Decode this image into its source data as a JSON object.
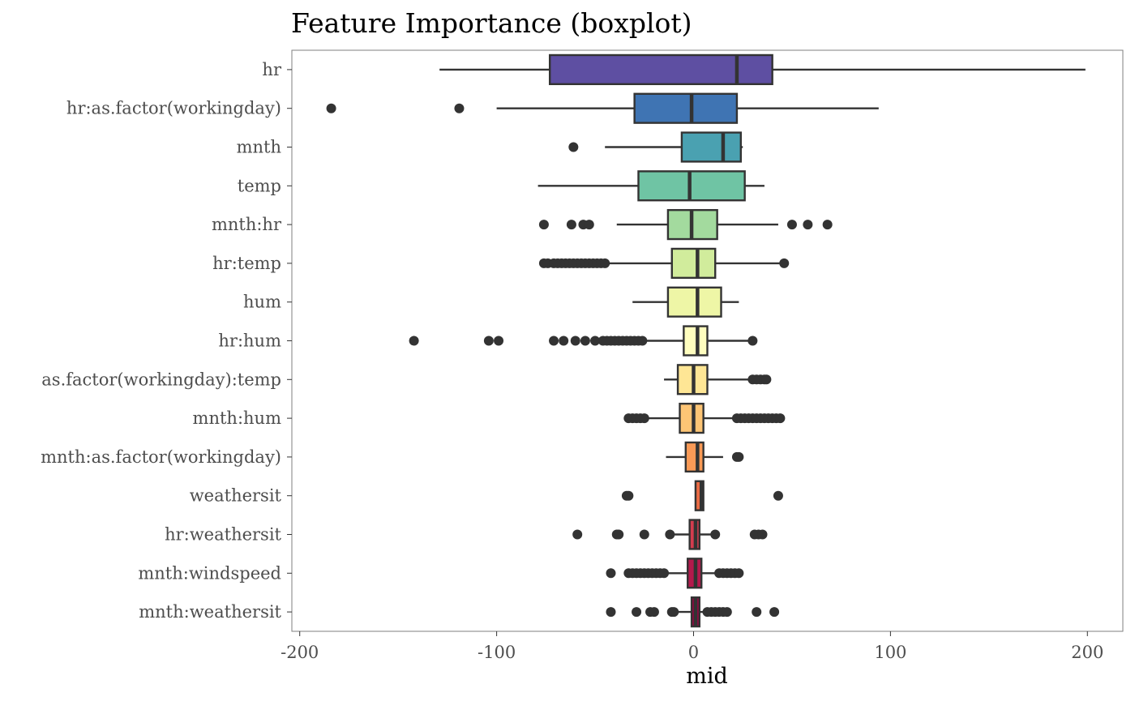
{
  "chart_data": {
    "type": "boxplot",
    "title": "Feature Importance (boxplot)",
    "xlabel": "mid",
    "ylabel": "",
    "xlim": [
      -204,
      218
    ],
    "xticks": [
      -200,
      -100,
      0,
      100,
      200
    ],
    "xtick_labels": [
      "-200",
      "-100",
      "0",
      "100",
      "200"
    ],
    "grid": false,
    "legend": "none",
    "categories": [
      "hr",
      "hr:as.factor(workingday)",
      "mnth",
      "temp",
      "mnth:hr",
      "hr:temp",
      "hum",
      "hr:hum",
      "as.factor(workingday):temp",
      "mnth:hum",
      "mnth:as.factor(workingday)",
      "weathersit",
      "hr:weathersit",
      "mnth:windspeed",
      "mnth:weathersit"
    ],
    "boxes": [
      {
        "whisker_low": -129,
        "q1": -73,
        "median": 22,
        "q3": 40,
        "whisker_high": 199,
        "outliers": [],
        "color": "#5E4FA2"
      },
      {
        "whisker_low": -100,
        "q1": -30,
        "median": -1,
        "q3": 22,
        "whisker_high": 94,
        "outliers": [
          -184,
          -119
        ],
        "color": "#3F74B3"
      },
      {
        "whisker_low": -45,
        "q1": -6,
        "median": 15,
        "q3": 24,
        "whisker_high": 25,
        "outliers": [
          -61
        ],
        "color": "#4AA1B1"
      },
      {
        "whisker_low": -79,
        "q1": -28,
        "median": -2,
        "q3": 26,
        "whisker_high": 36,
        "outliers": [],
        "color": "#6FC4A4"
      },
      {
        "whisker_low": -39,
        "q1": -13,
        "median": -1,
        "q3": 12,
        "whisker_high": 43,
        "outliers": [
          -76,
          -62,
          -56,
          -53,
          50,
          58,
          68
        ],
        "color": "#A3DA9E"
      },
      {
        "whisker_low": -44,
        "q1": -11,
        "median": 2,
        "q3": 11,
        "whisker_high": 45,
        "outliers": [
          -76,
          -74,
          -71,
          -69,
          -67,
          -65,
          -63,
          -61,
          -59,
          -57,
          -55,
          -53,
          -51,
          -49,
          -47,
          -45,
          46
        ],
        "color": "#D1EC9C"
      },
      {
        "whisker_low": -31,
        "q1": -13,
        "median": 2,
        "q3": 14,
        "whisker_high": 23,
        "outliers": [],
        "color": "#EEF6A6"
      },
      {
        "whisker_low": -26,
        "q1": -5,
        "median": 2,
        "q3": 7,
        "whisker_high": 30,
        "outliers": [
          -142,
          -104,
          -99,
          -71,
          -66,
          -60,
          -55,
          -50,
          -46,
          -44,
          -42,
          -40,
          -38,
          -36,
          -34,
          -32,
          -30,
          -28,
          -26,
          30
        ],
        "color": "#FFFEBF"
      },
      {
        "whisker_low": -15,
        "q1": -8,
        "median": 0,
        "q3": 7,
        "whisker_high": 30,
        "outliers": [
          30,
          32,
          34,
          36,
          37
        ],
        "color": "#FEE695"
      },
      {
        "whisker_low": -33,
        "q1": -7,
        "median": 0,
        "q3": 5,
        "whisker_high": 22,
        "outliers": [
          -33,
          -31,
          -29,
          -27,
          -25,
          22,
          24,
          26,
          28,
          30,
          32,
          34,
          36,
          38,
          40,
          42,
          44
        ],
        "color": "#FDC575"
      },
      {
        "whisker_low": -14,
        "q1": -4,
        "median": 2,
        "q3": 5,
        "whisker_high": 15,
        "outliers": [
          22,
          23
        ],
        "color": "#FA9A56"
      },
      {
        "whisker_low": 1,
        "q1": 1,
        "median": 4,
        "q3": 5,
        "whisker_high": 5,
        "outliers": [
          -34,
          -33,
          43
        ],
        "color": "#EB6C45"
      },
      {
        "whisker_low": -10,
        "q1": -2,
        "median": 1,
        "q3": 3,
        "whisker_high": 11,
        "outliers": [
          -59,
          -39,
          -38,
          -25,
          -12,
          11,
          31,
          33,
          35
        ],
        "color": "#D43D4F"
      },
      {
        "whisker_low": -14,
        "q1": -3,
        "median": 1,
        "q3": 4,
        "whisker_high": 12,
        "outliers": [
          -42,
          -33,
          -31,
          -29,
          -27,
          -25,
          -23,
          -21,
          -19,
          -17,
          -15,
          13,
          15,
          17,
          19,
          21,
          23
        ],
        "color": "#B4194C"
      },
      {
        "whisker_low": -8,
        "q1": -1,
        "median": 1,
        "q3": 3,
        "whisker_high": 8,
        "outliers": [
          -42,
          -29,
          -22,
          -20,
          -11,
          -10,
          7,
          9,
          11,
          13,
          15,
          17,
          32,
          41
        ],
        "color": "#9E0142"
      }
    ]
  }
}
